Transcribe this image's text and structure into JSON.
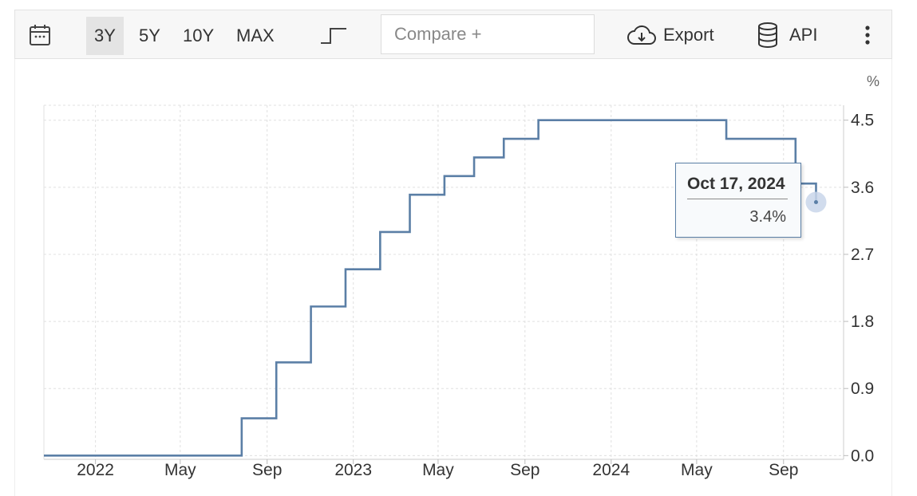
{
  "toolbar": {
    "ranges": [
      "3Y",
      "5Y",
      "10Y",
      "MAX"
    ],
    "active_range": "3Y",
    "compare_placeholder": "Compare +",
    "export_label": "Export",
    "api_label": "API"
  },
  "tooltip": {
    "date": "Oct 17, 2024",
    "value": "3.4%"
  },
  "colors": {
    "line": "#5b7fa6",
    "grid": "#e0e0e0",
    "marker": "#c9d6ea"
  },
  "chart_data": {
    "type": "line",
    "step": true,
    "unit_label": "%",
    "y_ticks": [
      "0.0",
      "0.9",
      "1.8",
      "2.7",
      "3.6",
      "4.5"
    ],
    "ylim": [
      -0.05,
      4.7
    ],
    "x_labels": [
      {
        "label": "2022",
        "date": "2022-01-01"
      },
      {
        "label": "May",
        "date": "2022-05-01"
      },
      {
        "label": "Sep",
        "date": "2022-09-01"
      },
      {
        "label": "2023",
        "date": "2023-01-01"
      },
      {
        "label": "May",
        "date": "2023-05-01"
      },
      {
        "label": "Sep",
        "date": "2023-09-01"
      },
      {
        "label": "2024",
        "date": "2024-01-01"
      },
      {
        "label": "May",
        "date": "2024-05-01"
      },
      {
        "label": "Sep",
        "date": "2024-09-01"
      }
    ],
    "xlim": [
      "2021-10-20",
      "2024-11-25"
    ],
    "series": [
      {
        "points": [
          {
            "date": "2021-10-20",
            "value": 0.0
          },
          {
            "date": "2022-07-27",
            "value": 0.5
          },
          {
            "date": "2022-09-14",
            "value": 1.25
          },
          {
            "date": "2022-11-02",
            "value": 2.0
          },
          {
            "date": "2022-12-21",
            "value": 2.5
          },
          {
            "date": "2023-02-08",
            "value": 3.0
          },
          {
            "date": "2023-03-22",
            "value": 3.5
          },
          {
            "date": "2023-05-10",
            "value": 3.75
          },
          {
            "date": "2023-06-21",
            "value": 4.0
          },
          {
            "date": "2023-08-02",
            "value": 4.25
          },
          {
            "date": "2023-09-20",
            "value": 4.5
          },
          {
            "date": "2024-06-12",
            "value": 4.25
          },
          {
            "date": "2024-09-18",
            "value": 3.65
          },
          {
            "date": "2024-10-17",
            "value": 3.4
          }
        ]
      }
    ]
  }
}
